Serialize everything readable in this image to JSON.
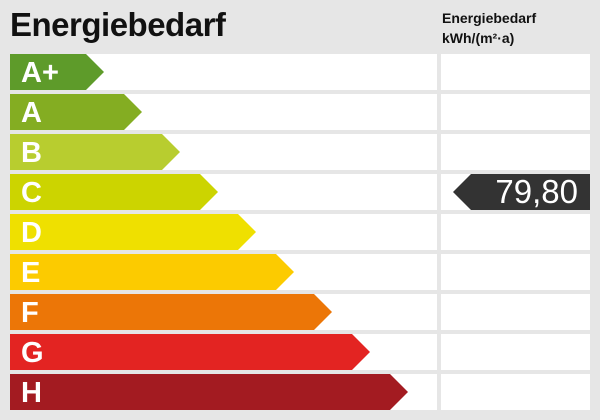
{
  "title": "Energiebedarf",
  "unit_header": {
    "line1": "Energiebedarf",
    "line2": "kWh/(m²·a)"
  },
  "classes": [
    {
      "label": "A+",
      "color": "#5e9b2a"
    },
    {
      "label": "A",
      "color": "#84ad22"
    },
    {
      "label": "B",
      "color": "#b8cd2f"
    },
    {
      "label": "C",
      "color": "#ccd400"
    },
    {
      "label": "D",
      "color": "#efe000"
    },
    {
      "label": "E",
      "color": "#fccb00"
    },
    {
      "label": "F",
      "color": "#ec7607"
    },
    {
      "label": "G",
      "color": "#e32422"
    },
    {
      "label": "H",
      "color": "#a31b21"
    }
  ],
  "marker": {
    "class": "C",
    "value": "79,80",
    "color": "#333333"
  }
}
